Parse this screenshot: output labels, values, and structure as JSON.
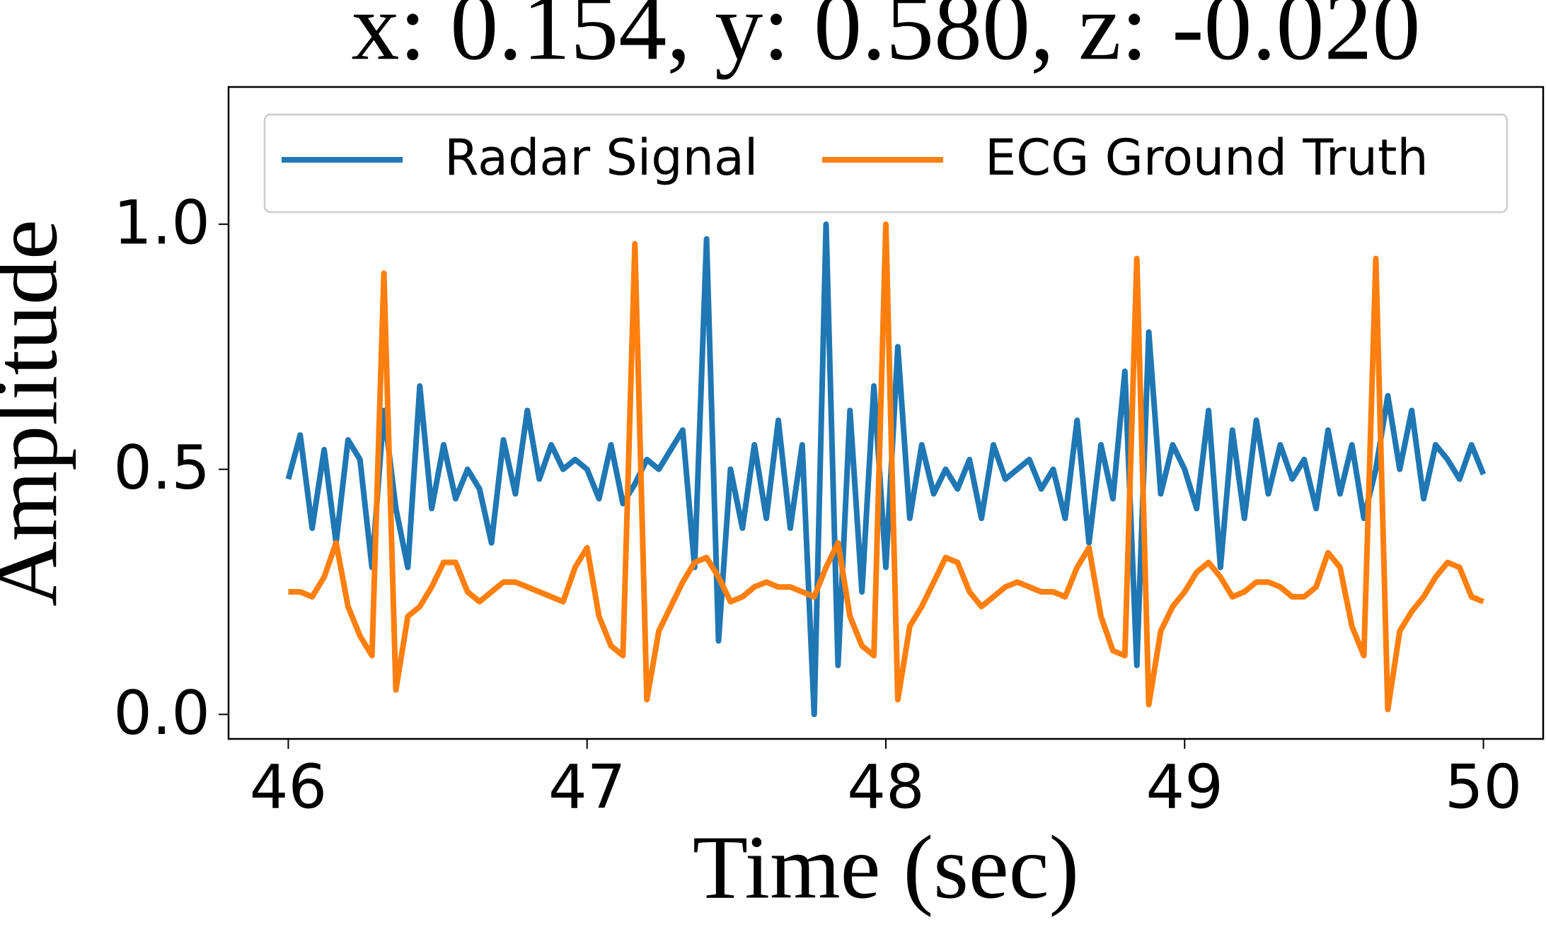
{
  "chart_data": {
    "type": "line",
    "title": "x: 0.154, y: 0.580, z: -0.020",
    "xlabel": "Time (sec)",
    "ylabel": "Amplitude",
    "x": [
      46.0,
      46.04,
      46.08,
      46.12,
      46.16,
      46.2,
      46.24,
      46.28,
      46.32,
      46.36,
      46.4,
      46.44,
      46.48,
      46.52,
      46.56,
      46.6,
      46.64,
      46.68,
      46.72,
      46.76,
      46.8,
      46.84,
      46.88,
      46.92,
      46.96,
      47.0,
      47.04,
      47.08,
      47.12,
      47.16,
      47.2,
      47.24,
      47.28,
      47.32,
      47.36,
      47.4,
      47.44,
      47.48,
      47.52,
      47.56,
      47.6,
      47.64,
      47.68,
      47.72,
      47.76,
      47.8,
      47.84,
      47.88,
      47.92,
      47.96,
      48.0,
      48.04,
      48.08,
      48.12,
      48.16,
      48.2,
      48.24,
      48.28,
      48.32,
      48.36,
      48.4,
      48.44,
      48.48,
      48.52,
      48.56,
      48.6,
      48.64,
      48.68,
      48.72,
      48.76,
      48.8,
      48.84,
      48.88,
      48.92,
      48.96,
      49.0,
      49.04,
      49.08,
      49.12,
      49.16,
      49.2,
      49.24,
      49.28,
      49.32,
      49.36,
      49.4,
      49.44,
      49.48,
      49.52,
      49.56,
      49.6,
      49.64,
      49.68,
      49.72,
      49.76,
      49.8,
      49.84,
      49.88,
      49.92,
      49.96,
      50.0
    ],
    "series": [
      {
        "name": "Radar Signal",
        "color": "#1f77b4",
        "values": [
          0.48,
          0.57,
          0.38,
          0.54,
          0.35,
          0.56,
          0.52,
          0.3,
          0.62,
          0.42,
          0.3,
          0.67,
          0.42,
          0.55,
          0.44,
          0.5,
          0.46,
          0.35,
          0.56,
          0.45,
          0.62,
          0.48,
          0.55,
          0.5,
          0.52,
          0.5,
          0.44,
          0.55,
          0.43,
          0.47,
          0.52,
          0.5,
          0.54,
          0.58,
          0.3,
          0.97,
          0.15,
          0.5,
          0.38,
          0.55,
          0.4,
          0.6,
          0.38,
          0.55,
          0.0,
          1.0,
          0.1,
          0.62,
          0.25,
          0.67,
          0.3,
          0.75,
          0.4,
          0.55,
          0.45,
          0.5,
          0.46,
          0.52,
          0.4,
          0.55,
          0.48,
          0.5,
          0.52,
          0.46,
          0.5,
          0.4,
          0.6,
          0.35,
          0.55,
          0.44,
          0.7,
          0.1,
          0.78,
          0.45,
          0.55,
          0.5,
          0.42,
          0.62,
          0.3,
          0.58,
          0.4,
          0.6,
          0.45,
          0.55,
          0.48,
          0.52,
          0.42,
          0.58,
          0.45,
          0.55,
          0.4,
          0.5,
          0.65,
          0.5,
          0.62,
          0.44,
          0.55,
          0.52,
          0.48,
          0.55,
          0.49
        ]
      },
      {
        "name": "ECG Ground Truth",
        "color": "#ff7f0e",
        "values": [
          0.25,
          0.25,
          0.24,
          0.28,
          0.35,
          0.22,
          0.16,
          0.12,
          0.9,
          0.05,
          0.2,
          0.22,
          0.26,
          0.31,
          0.31,
          0.25,
          0.23,
          0.25,
          0.27,
          0.27,
          0.26,
          0.25,
          0.24,
          0.23,
          0.3,
          0.34,
          0.2,
          0.14,
          0.12,
          0.96,
          0.03,
          0.17,
          0.22,
          0.27,
          0.31,
          0.32,
          0.28,
          0.23,
          0.24,
          0.26,
          0.27,
          0.26,
          0.26,
          0.25,
          0.24,
          0.3,
          0.35,
          0.2,
          0.14,
          0.12,
          1.0,
          0.03,
          0.18,
          0.22,
          0.27,
          0.32,
          0.31,
          0.25,
          0.22,
          0.24,
          0.26,
          0.27,
          0.26,
          0.25,
          0.25,
          0.24,
          0.3,
          0.34,
          0.2,
          0.13,
          0.12,
          0.93,
          0.02,
          0.17,
          0.22,
          0.25,
          0.29,
          0.31,
          0.28,
          0.24,
          0.25,
          0.27,
          0.27,
          0.26,
          0.24,
          0.24,
          0.26,
          0.33,
          0.3,
          0.18,
          0.12,
          0.93,
          0.01,
          0.17,
          0.21,
          0.24,
          0.28,
          0.31,
          0.3,
          0.24,
          0.23
        ]
      }
    ],
    "xlim": [
      45.8,
      50.2
    ],
    "ylim": [
      -0.05,
      1.28
    ],
    "xticks": [
      46,
      47,
      48,
      49,
      50
    ],
    "yticks": [
      {
        "value": 0,
        "label": "0.0"
      },
      0.5,
      {
        "value": 1,
        "label": "1.0"
      }
    ],
    "legend": "upper center",
    "grid": false
  }
}
